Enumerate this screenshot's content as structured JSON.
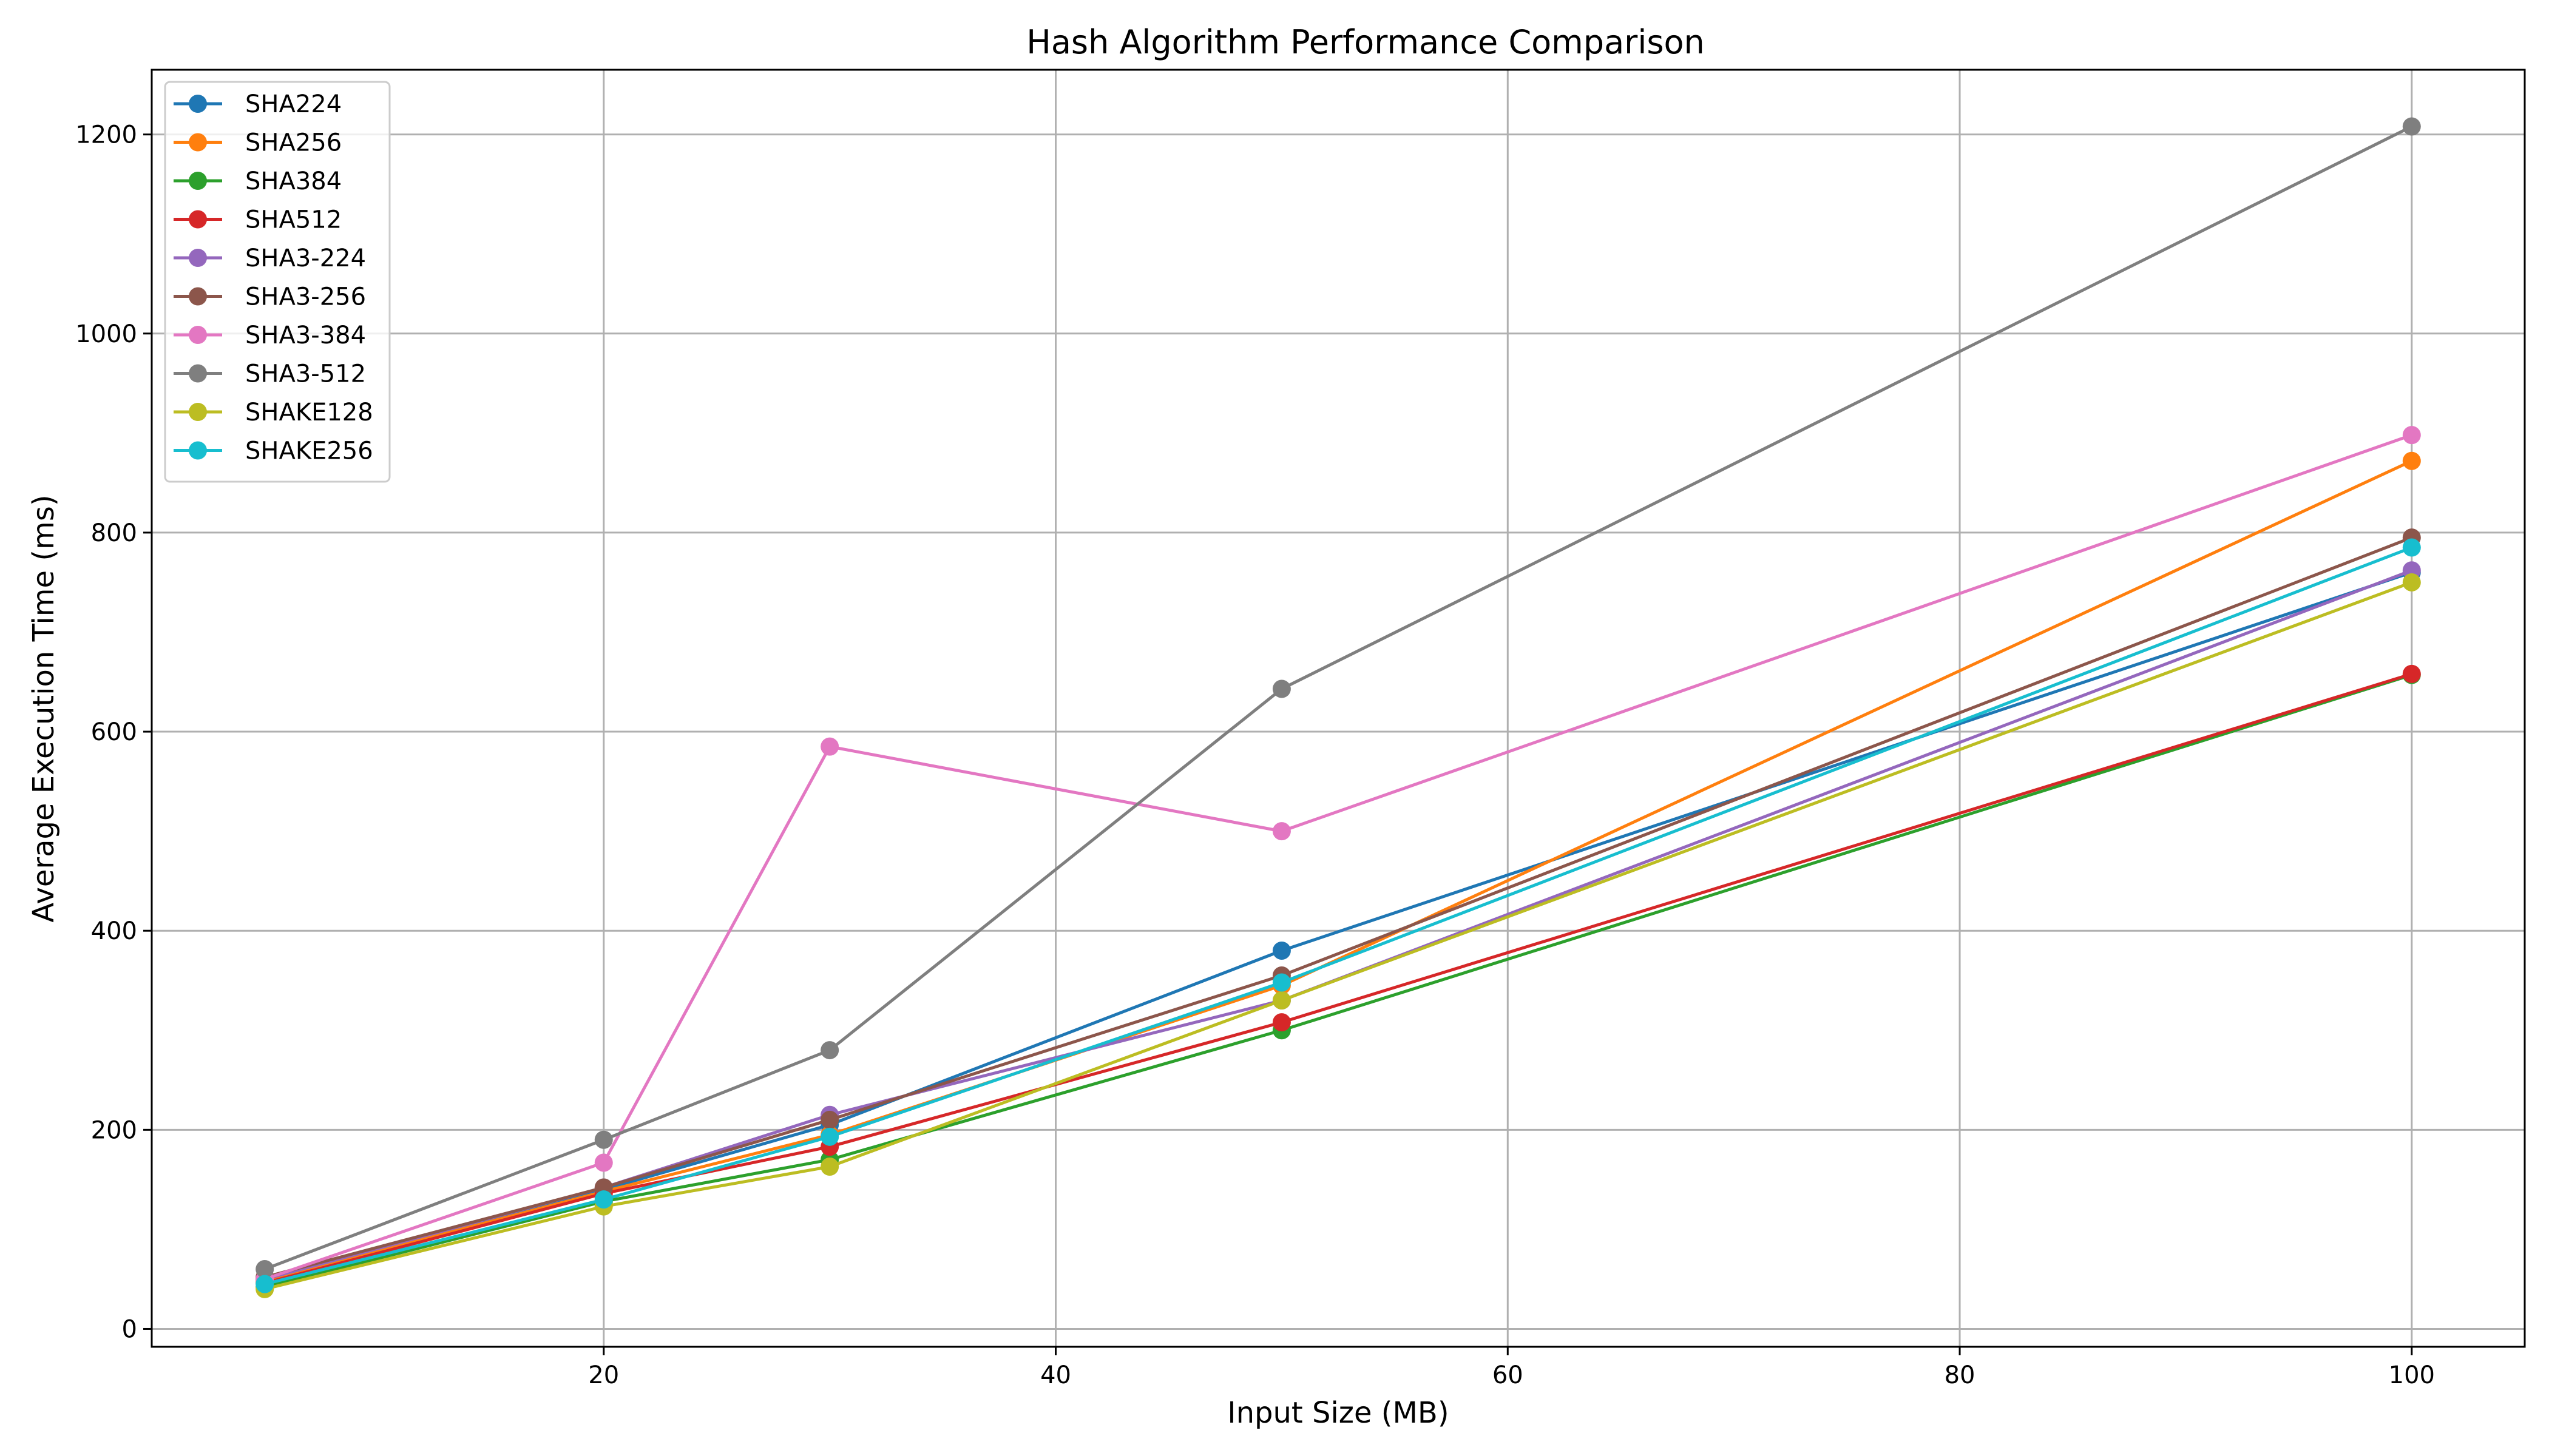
{
  "chart_data": {
    "type": "line",
    "title": "Hash Algorithm Performance Comparison",
    "xlabel": "Input Size (MB)",
    "ylabel": "Average Execution Time (ms)",
    "x": [
      5,
      20,
      30,
      50,
      100
    ],
    "xlim": [
      0,
      105
    ],
    "ylim": [
      -18,
      1265
    ],
    "xticks": [
      20,
      40,
      60,
      80,
      100
    ],
    "yticks": [
      0,
      200,
      400,
      600,
      800,
      1000,
      1200
    ],
    "grid": true,
    "legend_position": "upper-left",
    "series": [
      {
        "name": "SHA224",
        "color": "#1f77b4",
        "values": [
          50,
          140,
          205,
          380,
          760
        ]
      },
      {
        "name": "SHA256",
        "color": "#ff7f0e",
        "values": [
          48,
          138,
          195,
          345,
          872
        ]
      },
      {
        "name": "SHA384",
        "color": "#2ca02c",
        "values": [
          42,
          128,
          170,
          300,
          657
        ]
      },
      {
        "name": "SHA512",
        "color": "#d62728",
        "values": [
          46,
          136,
          183,
          308,
          658
        ]
      },
      {
        "name": "SHA3-224",
        "color": "#9467bd",
        "values": [
          50,
          142,
          215,
          330,
          762
        ]
      },
      {
        "name": "SHA3-256",
        "color": "#8c564b",
        "values": [
          52,
          142,
          210,
          355,
          795
        ]
      },
      {
        "name": "SHA3-384",
        "color": "#e377c2",
        "values": [
          50,
          167,
          585,
          500,
          898
        ]
      },
      {
        "name": "SHA3-512",
        "color": "#7f7f7f",
        "values": [
          60,
          190,
          280,
          643,
          1208
        ]
      },
      {
        "name": "SHAKE128",
        "color": "#bcbd22",
        "values": [
          40,
          123,
          163,
          330,
          750
        ]
      },
      {
        "name": "SHAKE256",
        "color": "#17becf",
        "values": [
          45,
          130,
          193,
          348,
          785
        ]
      }
    ]
  }
}
